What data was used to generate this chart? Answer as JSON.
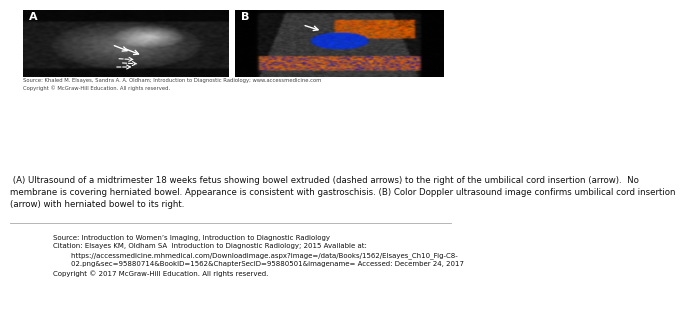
{
  "bg_color": "#ffffff",
  "label_A": "A",
  "label_B": "B",
  "caption_text": " (A) Ultrasound of a midtrimester 18 weeks fetus showing bowel extruded (dashed arrows) to the right of the umbilical cord insertion (arrow).  No\nmembrane is covering herniated bowel. Appearance is consistent with gastroschisis. (B) Color Doppler ultrasound image confirms umbilical cord insertion\n(arrow) with herniated bowel to its right.",
  "caption_fontsize": 6.2,
  "source_small_text": "Source: Khaled M. Elsayes, Sandra A. A. Oldham; Introduction to Diagnostic Radiology; www.accessmedicine.com\nCopyright © McGraw-Hill Education. All rights reserved.",
  "source_line1": "Source: Introduction to Women’s Imaging, Introduction to Diagnostic Radiology",
  "citation_line": "Citation: Elsayes KM, Oldham SA  Introduction to Diagnostic Radiology; 2015 Available at:",
  "url_line": "        https://accessmedicine.mhmedical.com/Downloadimage.aspx?image=/data/Books/1562/Elsayes_Ch10_Fig-C8-",
  "url_line2": "        02.png&sec=95880714&BookID=1562&ChapterSecID=95880501&imagename= Accessed: December 24, 2017",
  "copyright_line": "Copyright © 2017 McGraw-Hill Education. All rights reserved.",
  "mcgraw_red": "#c41230",
  "footer_fontsize": 5.5
}
